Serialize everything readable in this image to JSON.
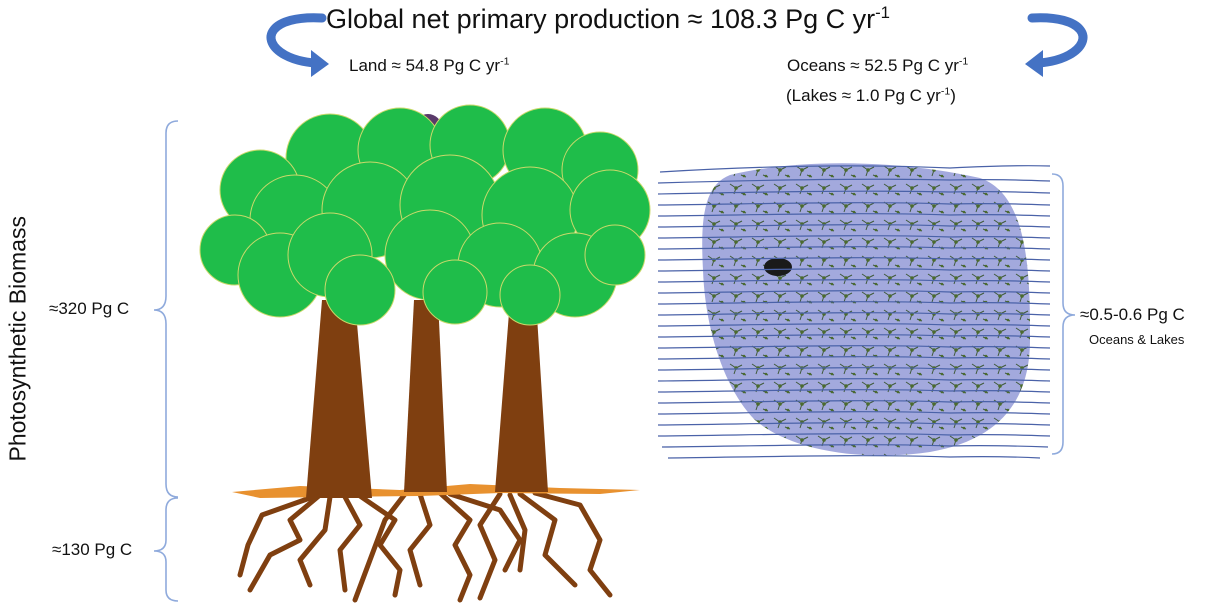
{
  "title": {
    "main": "Global net primary production ≈ 108.3 Pg C yr",
    "exp": "-1"
  },
  "land": {
    "text": "Land ≈ 54.8 Pg C yr",
    "exp": "-1"
  },
  "oceans": {
    "text": "Oceans ≈ 52.5 Pg C yr",
    "exp": "-1"
  },
  "lakes": {
    "text": "(Lakes ≈ 1.0 Pg C yr",
    "exp": "-1",
    "close": ")"
  },
  "y_axis_label": "Photosynthetic Biomass",
  "aboveground": "≈320 Pg C",
  "belowground": "≈130 Pg C",
  "aquatic": {
    "value": "≈0.5-0.6 Pg C",
    "scope": "Oceans & Lakes"
  },
  "colors": {
    "arrow": "#4472c4",
    "bracket": "#8faadc",
    "canopy": "#1fbd4a",
    "canopy_edge": "#c9d96a",
    "trunk": "#7f3f10",
    "ground": "#e8912f",
    "water_blob": "#a3a9dd",
    "water_line": "#4a62a8"
  },
  "icons": [
    "curved-arrow-left-icon",
    "curved-arrow-right-icon",
    "tree-illustration",
    "phytoplankton-water-illustration"
  ]
}
